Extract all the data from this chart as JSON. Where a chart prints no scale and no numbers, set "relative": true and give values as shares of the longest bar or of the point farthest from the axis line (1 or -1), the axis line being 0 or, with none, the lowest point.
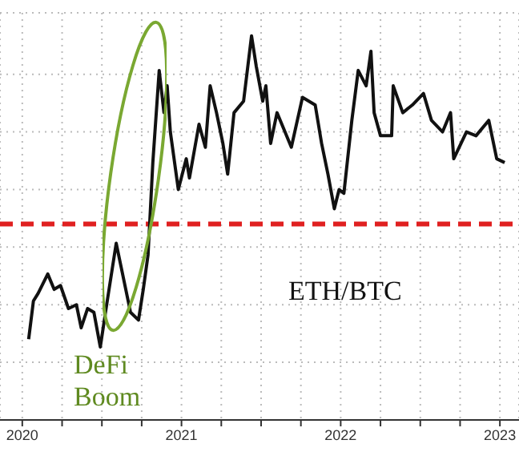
{
  "chart_data": {
    "type": "line",
    "relative": true,
    "grid": true,
    "line_style": "solid",
    "marker": "none",
    "xlim": [
      2020.36,
      2023.62
    ],
    "xticks": [
      {
        "value": 2020.5,
        "label": "2020"
      },
      {
        "value": 2020.75,
        "label": null
      },
      {
        "value": 2021,
        "label": null
      },
      {
        "value": 2021.25,
        "label": null
      },
      {
        "value": 2021.5,
        "label": "2021"
      },
      {
        "value": 2021.75,
        "label": null
      },
      {
        "value": 2022,
        "label": null
      },
      {
        "value": 2022.25,
        "label": null
      },
      {
        "value": 2022.5,
        "label": "2022"
      },
      {
        "value": 2022.75,
        "label": null
      },
      {
        "value": 2023,
        "label": null
      },
      {
        "value": 2023.25,
        "label": null
      },
      {
        "value": 2023.5,
        "label": "2023"
      }
    ],
    "annotations": [
      "DeFi Boom"
    ],
    "ref_lines": [
      {
        "axis": "y",
        "value": 0.51,
        "color": "#e02020",
        "line_style": "dashed"
      }
    ],
    "series": [
      {
        "name": "ETH/BTC",
        "color": "#111111",
        "x": [
          2020.54,
          2020.57,
          2020.6,
          2020.66,
          2020.7,
          2020.74,
          2020.79,
          2020.84,
          2020.87,
          2020.91,
          2020.95,
          2020.99,
          2021.03,
          2021.09,
          2021.12,
          2021.16,
          2021.18,
          2021.23,
          2021.26,
          2021.29,
          2021.32,
          2021.36,
          2021.39,
          2021.41,
          2021.43,
          2021.48,
          2021.53,
          2021.55,
          2021.61,
          2021.65,
          2021.68,
          2021.72,
          2021.76,
          2021.79,
          2021.83,
          2021.89,
          2021.94,
          2021.97,
          2022.01,
          2022.03,
          2022.06,
          2022.1,
          2022.15,
          2022.19,
          2022.26,
          2022.34,
          2022.38,
          2022.42,
          2022.46,
          2022.49,
          2022.52,
          2022.57,
          2022.61,
          2022.66,
          2022.69,
          2022.71,
          2022.75,
          2022.82,
          2022.83,
          2022.89,
          2022.95,
          2023.02,
          2023.07,
          2023.14,
          2023.19,
          2023.21,
          2023.29,
          2023.35,
          2023.43,
          2023.48,
          2023.53
        ],
        "values": [
          0.21,
          0.31,
          0.33,
          0.38,
          0.34,
          0.35,
          0.29,
          0.3,
          0.24,
          0.29,
          0.28,
          0.19,
          0.3,
          0.46,
          0.4,
          0.32,
          0.28,
          0.26,
          0.34,
          0.43,
          0.67,
          0.91,
          0.8,
          0.87,
          0.75,
          0.6,
          0.68,
          0.63,
          0.77,
          0.71,
          0.87,
          0.8,
          0.72,
          0.64,
          0.8,
          0.83,
          1.0,
          0.92,
          0.83,
          0.87,
          0.72,
          0.8,
          0.75,
          0.71,
          0.84,
          0.82,
          0.72,
          0.64,
          0.55,
          0.6,
          0.59,
          0.78,
          0.91,
          0.87,
          0.96,
          0.8,
          0.74,
          0.74,
          0.87,
          0.8,
          0.82,
          0.85,
          0.78,
          0.75,
          0.8,
          0.68,
          0.75,
          0.74,
          0.78,
          0.68,
          0.67
        ]
      }
    ]
  }
}
